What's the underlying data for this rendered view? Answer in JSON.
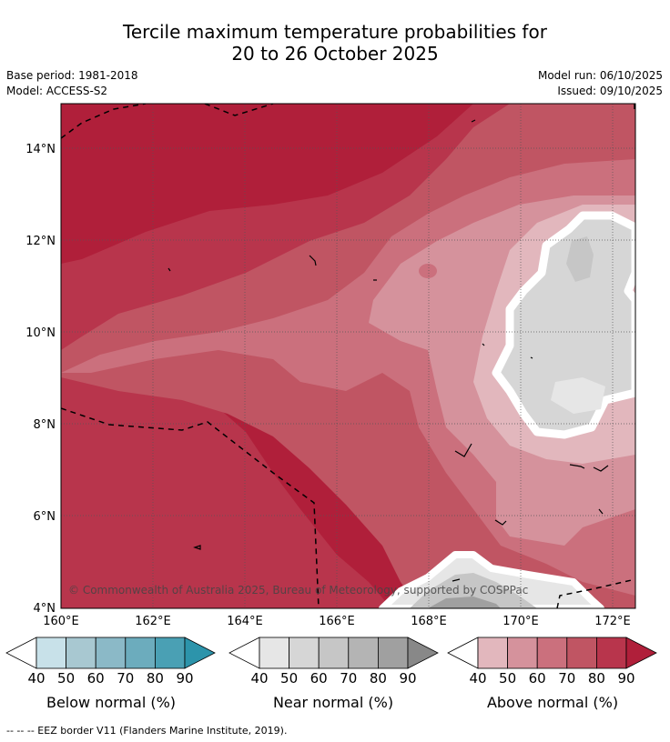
{
  "title": {
    "line1": "Tercile maximum temperature probabilities for",
    "line2": "20 to 26 October 2025"
  },
  "meta": {
    "base_period": "Base period: 1981-2018",
    "model": "Model: ACCESS-S2",
    "model_run": "Model run: 06/10/2025",
    "issued": "Issued: 09/10/2025"
  },
  "map": {
    "lat_labels": [
      "14°N",
      "12°N",
      "10°N",
      "8°N",
      "6°N",
      "4°N"
    ],
    "lon_labels": [
      "160°E",
      "162°E",
      "164°E",
      "166°E",
      "168°E",
      "170°E",
      "172°E"
    ],
    "copyright": "© Commonwealth of Australia 2025, Bureau of Meteorology, supported by COSPPac"
  },
  "colorbars": [
    {
      "label": "Below normal (%)",
      "ticks": [
        "40",
        "50",
        "60",
        "70",
        "80",
        "90"
      ],
      "colors": [
        "#ffffff",
        "#c8e1e9",
        "#a8c8d1",
        "#8bb9c7",
        "#6cacbd",
        "#4aa0b4",
        "#2c94ab"
      ]
    },
    {
      "label": "Near normal (%)",
      "ticks": [
        "40",
        "50",
        "60",
        "70",
        "80",
        "90"
      ],
      "colors": [
        "#ffffff",
        "#e6e6e6",
        "#d6d6d6",
        "#c6c6c6",
        "#b4b4b4",
        "#a0a0a0",
        "#888888"
      ]
    },
    {
      "label": "Above normal (%)",
      "ticks": [
        "40",
        "50",
        "60",
        "70",
        "80",
        "90"
      ],
      "colors": [
        "#ffffff",
        "#e2b7bd",
        "#d5929c",
        "#cb707d",
        "#c05563",
        "#b8354c",
        "#b01f3a"
      ]
    }
  ],
  "footnote": "-- -- -- EEZ border V11 (Flanders Marine Institute, 2019)."
}
